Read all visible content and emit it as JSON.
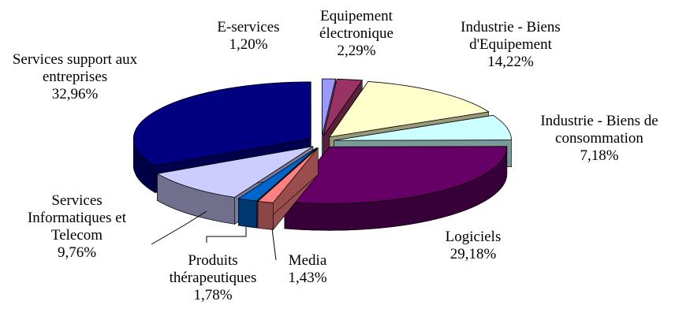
{
  "chart_data": {
    "type": "pie",
    "categories": [
      "E-services",
      "Equipement électronique",
      "Industrie - Biens d'Equipement",
      "Industrie - Biens de consommation",
      "Logiciels",
      "Media",
      "Produits thérapeutiques",
      "Services Informatiques et Telecom",
      "Services support aux entreprises"
    ],
    "values": [
      1.2,
      2.29,
      14.22,
      7.18,
      29.18,
      1.43,
      1.78,
      9.76,
      32.96
    ],
    "value_labels": [
      "1,20%",
      "2,29%",
      "14,22%",
      "7,18%",
      "29,18%",
      "1,43%",
      "1,78%",
      "9,76%",
      "32,96%"
    ],
    "colors": [
      "#9999ff",
      "#993366",
      "#ffffcc",
      "#ccffff",
      "#660066",
      "#ff8080",
      "#0066cc",
      "#ccccff",
      "#000080"
    ]
  }
}
